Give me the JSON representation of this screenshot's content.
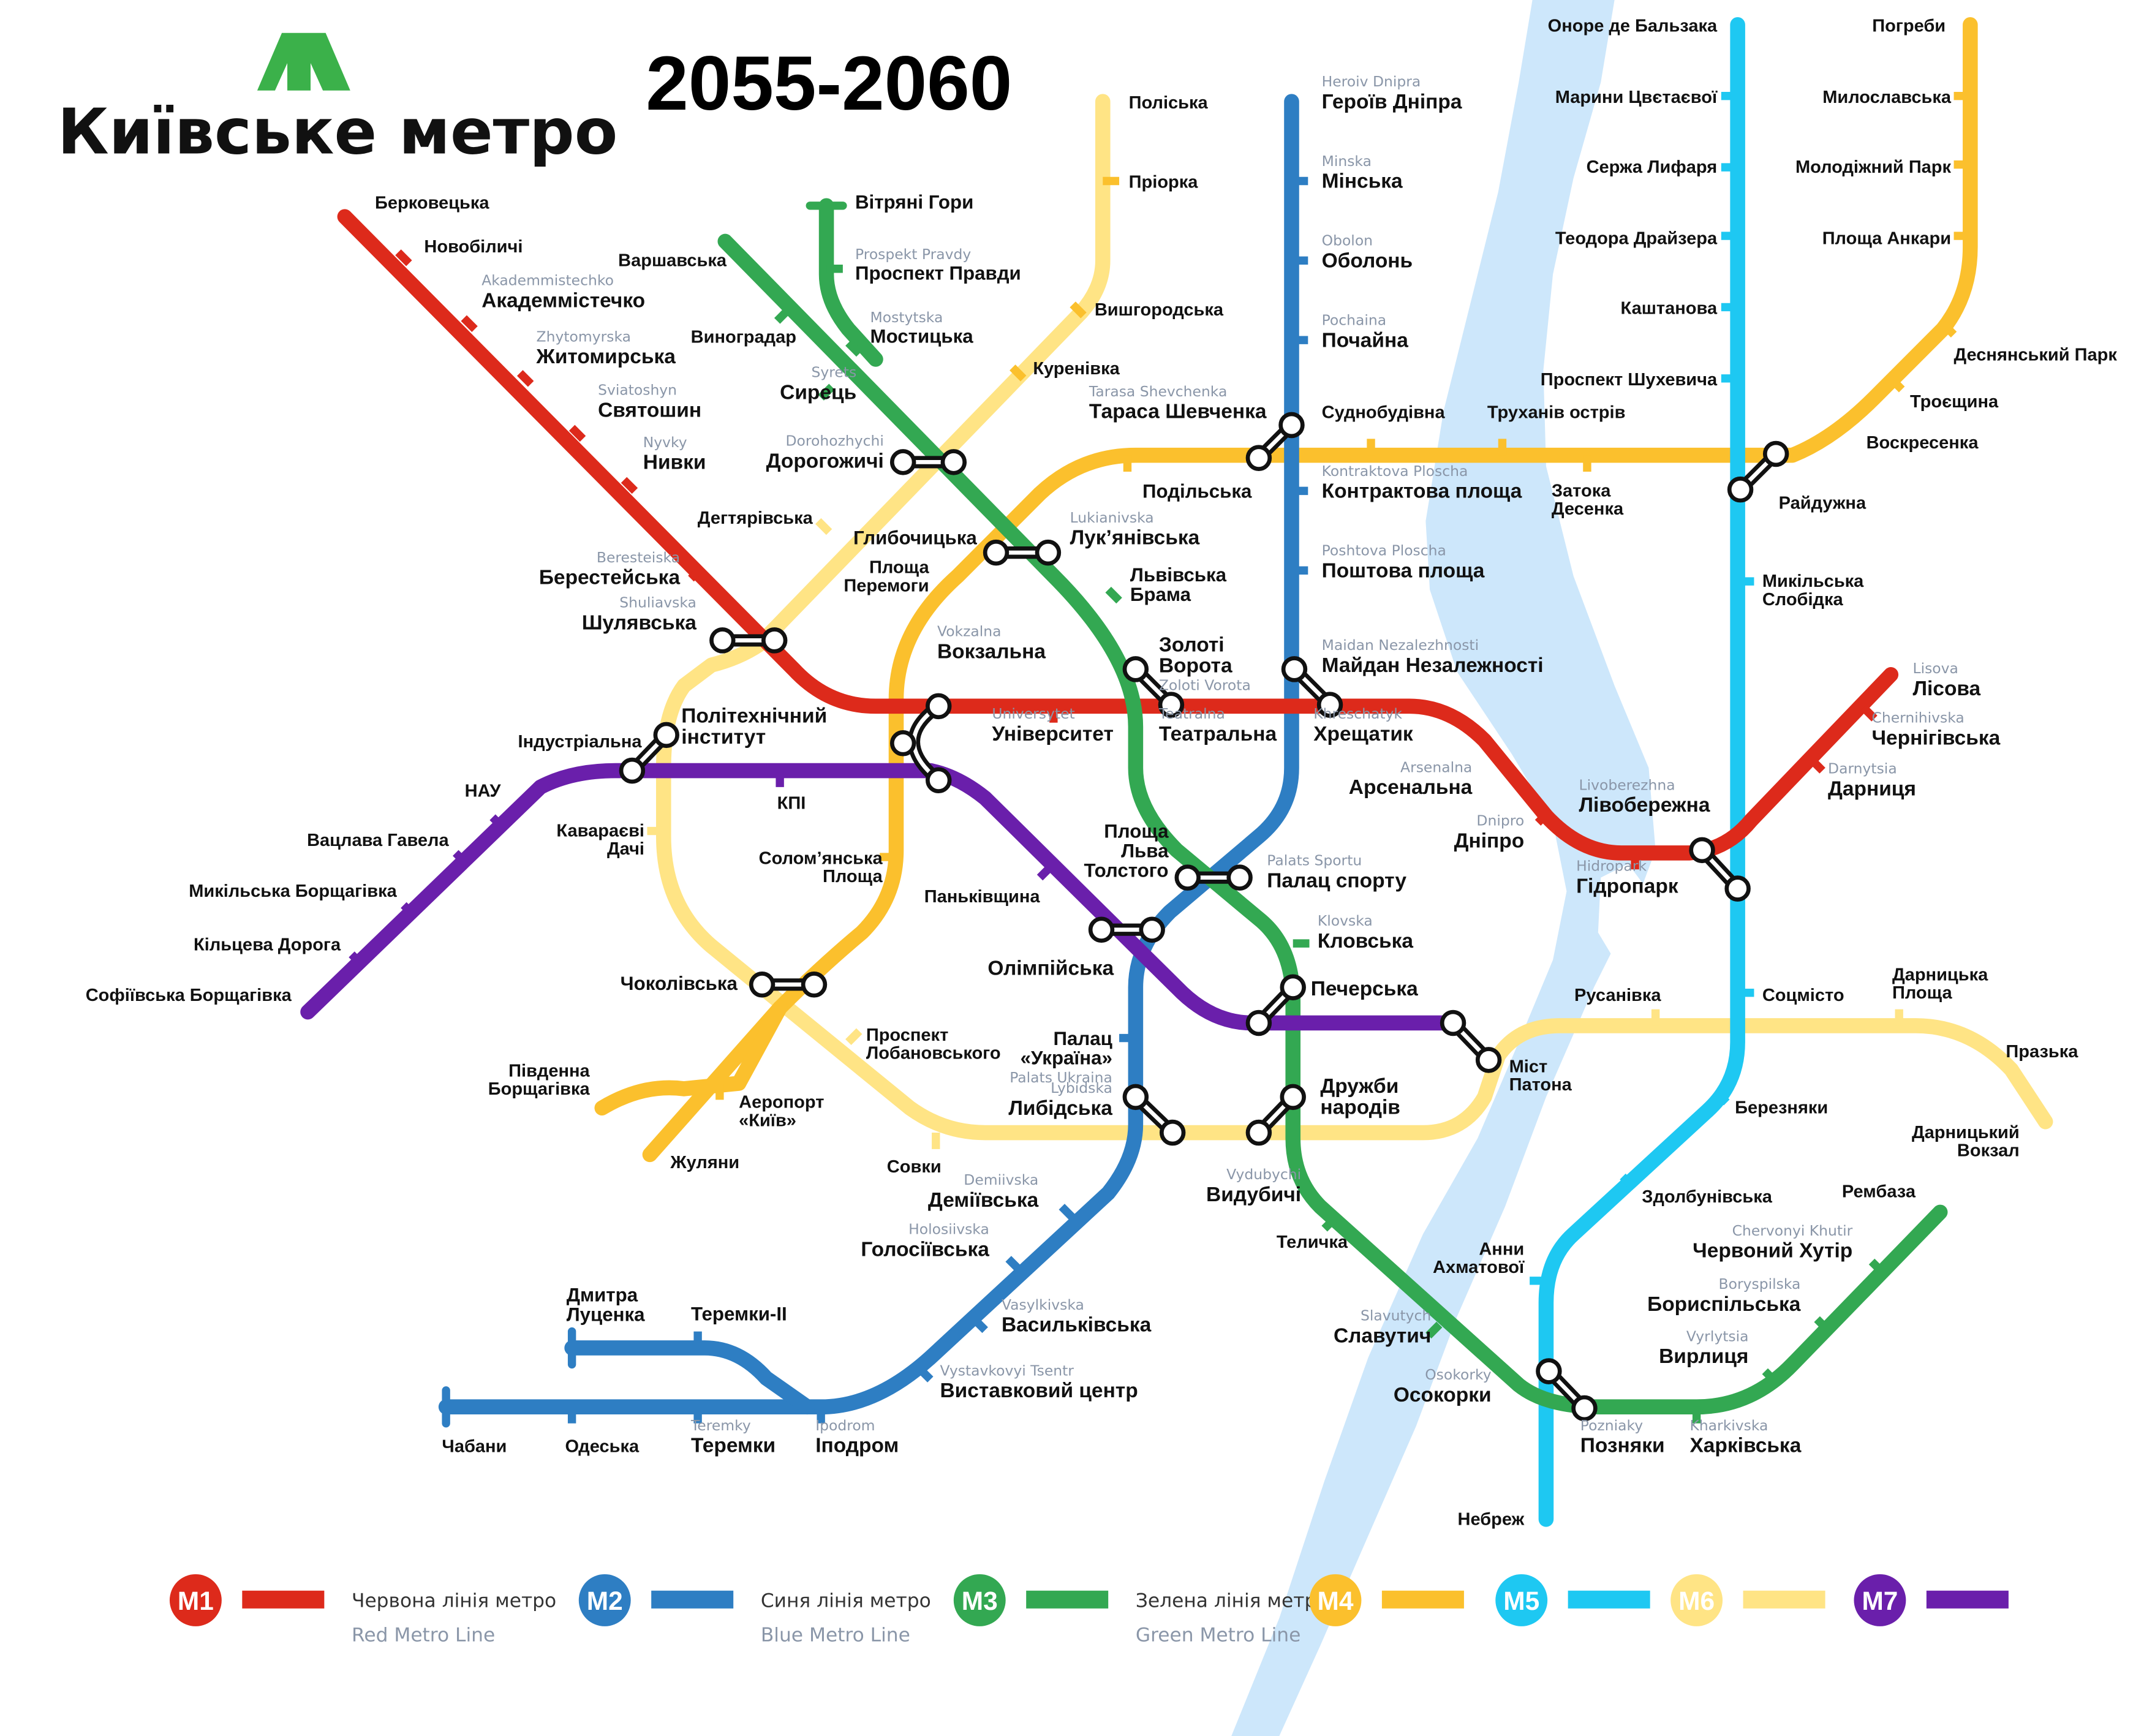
{
  "header": {
    "logo_title": "Київське метро",
    "years": "2055-2060"
  },
  "colors": {
    "m1": "#dd2a1b",
    "m2": "#2e7ec3",
    "m3": "#33a852",
    "m4": "#fbc02d",
    "m5": "#1ec8f2",
    "m6": "#ffe485",
    "m7": "#6a1fab",
    "river": "#cde7fb",
    "logo": "#3bb14a"
  },
  "legend": [
    {
      "code": "M1",
      "ua": "Червона лінія метро",
      "en": "Red Metro Line",
      "color": "#dd2a1b"
    },
    {
      "code": "M2",
      "ua": "Синя лінія метро",
      "en": "Blue Metro Line",
      "color": "#2e7ec3"
    },
    {
      "code": "M3",
      "ua": "Зелена лінія метро",
      "en": "Green Metro Line",
      "color": "#33a852"
    },
    {
      "code": "M4",
      "ua": "",
      "en": "",
      "color": "#fbc02d"
    },
    {
      "code": "M5",
      "ua": "",
      "en": "",
      "color": "#1ec8f2"
    },
    {
      "code": "M6",
      "ua": "",
      "en": "",
      "color": "#ffe485"
    },
    {
      "code": "M7",
      "ua": "",
      "en": "",
      "color": "#6a1fab"
    }
  ],
  "stations": [
    {
      "name": "Берковецька",
      "latin": ""
    },
    {
      "name": "Новобіличі",
      "latin": ""
    },
    {
      "name": "Академмістечко",
      "latin": "Akademmistechko"
    },
    {
      "name": "Житомирська",
      "latin": "Zhytomyrska"
    },
    {
      "name": "Святошин",
      "latin": "Sviatoshyn"
    },
    {
      "name": "Нивки",
      "latin": "Nyvky"
    },
    {
      "name": "Берестейська",
      "latin": "Beresteiska"
    },
    {
      "name": "Шулявська",
      "latin": "Shuliavska"
    },
    {
      "name": "Політехнічний інститут",
      "latin": ""
    },
    {
      "name": "Вокзальна",
      "latin": "Vokzalna"
    },
    {
      "name": "Університет",
      "latin": "Universytet"
    },
    {
      "name": "Театральна",
      "latin": "Teatralna"
    },
    {
      "name": "Хрещатик",
      "latin": "Khreschatyk"
    },
    {
      "name": "Арсенальна",
      "latin": "Arsenalna"
    },
    {
      "name": "Дніпро",
      "latin": "Dnipro"
    },
    {
      "name": "Гідропарк",
      "latin": "Hidropark"
    },
    {
      "name": "Лівобережна",
      "latin": "Livoberezhna"
    },
    {
      "name": "Дарниця",
      "latin": "Darnytsia"
    },
    {
      "name": "Чернігівська",
      "latin": "Chernihivska"
    },
    {
      "name": "Лісова",
      "latin": "Lisova"
    },
    {
      "name": "Героїв Дніпра",
      "latin": "Heroiv Dnipra"
    },
    {
      "name": "Мінська",
      "latin": "Minska"
    },
    {
      "name": "Оболонь",
      "latin": "Obolon"
    },
    {
      "name": "Почайна",
      "latin": "Pochaina"
    },
    {
      "name": "Тараса Шевченка",
      "latin": "Tarasa Shevchenka"
    },
    {
      "name": "Контрактова площа",
      "latin": "Kontraktova Ploscha"
    },
    {
      "name": "Поштова площа",
      "latin": "Poshtova Ploscha"
    },
    {
      "name": "Майдан Незалежності",
      "latin": "Maidan Nezalezhnosti"
    },
    {
      "name": "Площа Льва Толстого",
      "latin": ""
    },
    {
      "name": "Олімпійська",
      "latin": ""
    },
    {
      "name": "Палац «Україна»",
      "latin": "Palats Ukraina"
    },
    {
      "name": "Либідська",
      "latin": "Lybidska"
    },
    {
      "name": "Деміївська",
      "latin": "Demiivska"
    },
    {
      "name": "Голосіївська",
      "latin": "Holosiivska"
    },
    {
      "name": "Васильківська",
      "latin": "Vasylkivska"
    },
    {
      "name": "Виставковий центр",
      "latin": "Vystavkovyi Tsentr"
    },
    {
      "name": "Іподром",
      "latin": "Ipodrom"
    },
    {
      "name": "Теремки",
      "latin": "Teremky"
    },
    {
      "name": "Одеська",
      "latin": ""
    },
    {
      "name": "Чабани",
      "latin": ""
    },
    {
      "name": "Теремки-II",
      "latin": ""
    },
    {
      "name": "Дмитра Луценка",
      "latin": ""
    },
    {
      "name": "Вітряні Гори",
      "latin": ""
    },
    {
      "name": "Проспект Правди",
      "latin": "Prospekt Pravdy"
    },
    {
      "name": "Варшавська",
      "latin": ""
    },
    {
      "name": "Мостицька",
      "latin": "Mostytska"
    },
    {
      "name": "Виноградар",
      "latin": ""
    },
    {
      "name": "Сирець",
      "latin": "Syrets"
    },
    {
      "name": "Дорогожичі",
      "latin": "Dorohozhychi"
    },
    {
      "name": "Лук’янівська",
      "latin": "Lukianivska"
    },
    {
      "name": "Львівська Брама",
      "latin": ""
    },
    {
      "name": "Золоті Ворота",
      "latin": "Zoloti Vorota"
    },
    {
      "name": "Палац спорту",
      "latin": "Palats Sportu"
    },
    {
      "name": "Кловська",
      "latin": "Klovska"
    },
    {
      "name": "Печерська",
      "latin": ""
    },
    {
      "name": "Дружби народів",
      "latin": ""
    },
    {
      "name": "Видубичі",
      "latin": "Vydubychi"
    },
    {
      "name": "Теличка",
      "latin": ""
    },
    {
      "name": "Славутич",
      "latin": "Slavutych"
    },
    {
      "name": "Осокорки",
      "latin": "Osokorky"
    },
    {
      "name": "Позняки",
      "latin": "Pozniaky"
    },
    {
      "name": "Харківська",
      "latin": "Kharkivska"
    },
    {
      "name": "Вирлиця",
      "latin": "Vyrlytsia"
    },
    {
      "name": "Бориспільська",
      "latin": "Boryspilska"
    },
    {
      "name": "Червоний Хутір",
      "latin": "Chervonyi Khutir"
    },
    {
      "name": "Рембаза",
      "latin": ""
    },
    {
      "name": "Поліська",
      "latin": ""
    },
    {
      "name": "Пріорка",
      "latin": ""
    },
    {
      "name": "Вишгородська",
      "latin": ""
    },
    {
      "name": "Куренівка",
      "latin": ""
    },
    {
      "name": "Подільська",
      "latin": ""
    },
    {
      "name": "Глибочицька",
      "latin": ""
    },
    {
      "name": "Площа Перемоги",
      "latin": ""
    },
    {
      "name": "Солом’янська Площа",
      "latin": ""
    },
    {
      "name": "Чоколівська",
      "latin": ""
    },
    {
      "name": "Аеропорт «Київ»",
      "latin": ""
    },
    {
      "name": "Південна Борщагівка",
      "latin": ""
    },
    {
      "name": "Жуляни",
      "latin": ""
    },
    {
      "name": "Суднобудівна",
      "latin": ""
    },
    {
      "name": "Труханів острів",
      "latin": ""
    },
    {
      "name": "Затока Десенка",
      "latin": ""
    },
    {
      "name": "Райдужна",
      "latin": ""
    },
    {
      "name": "Воскресенка",
      "latin": ""
    },
    {
      "name": "Троєщина",
      "latin": ""
    },
    {
      "name": "Деснянський Парк",
      "latin": ""
    },
    {
      "name": "Площа Анкари",
      "latin": ""
    },
    {
      "name": "Молодіжний Парк",
      "latin": ""
    },
    {
      "name": "Милославська",
      "latin": ""
    },
    {
      "name": "Погреби",
      "latin": ""
    },
    {
      "name": "Оноре де Бальзака",
      "latin": ""
    },
    {
      "name": "Марини Цвєтаєвої",
      "latin": ""
    },
    {
      "name": "Сержа Лифаря",
      "latin": ""
    },
    {
      "name": "Теодора Драйзера",
      "latin": ""
    },
    {
      "name": "Каштанова",
      "latin": ""
    },
    {
      "name": "Проспект Шухевича",
      "latin": ""
    },
    {
      "name": "Микільська Слобідка",
      "latin": ""
    },
    {
      "name": "Соцмісто",
      "latin": ""
    },
    {
      "name": "Березняки",
      "latin": ""
    },
    {
      "name": "Здолбунівська",
      "latin": ""
    },
    {
      "name": "Анни Ахматової",
      "latin": ""
    },
    {
      "name": "Небреж",
      "latin": ""
    },
    {
      "name": "Дегтярівська",
      "latin": ""
    },
    {
      "name": "Індустріальна",
      "latin": ""
    },
    {
      "name": "Каварaєві Дачі",
      "latin": ""
    },
    {
      "name": "Проспект Лобановського",
      "latin": ""
    },
    {
      "name": "Совки",
      "latin": ""
    },
    {
      "name": "Міст Патона",
      "latin": ""
    },
    {
      "name": "Русанівка",
      "latin": ""
    },
    {
      "name": "Дарницька Площа",
      "latin": ""
    },
    {
      "name": "Празька",
      "latin": ""
    },
    {
      "name": "Дарницький Вокзал",
      "latin": ""
    },
    {
      "name": "НАУ",
      "latin": ""
    },
    {
      "name": "Вацлава Гавела",
      "latin": ""
    },
    {
      "name": "Микільська Борщагівка",
      "latin": ""
    },
    {
      "name": "Кільцева Дорога",
      "latin": ""
    },
    {
      "name": "Софіївська Борщагівка",
      "latin": ""
    },
    {
      "name": "КПІ",
      "latin": ""
    },
    {
      "name": "Паньківщина",
      "latin": ""
    }
  ]
}
